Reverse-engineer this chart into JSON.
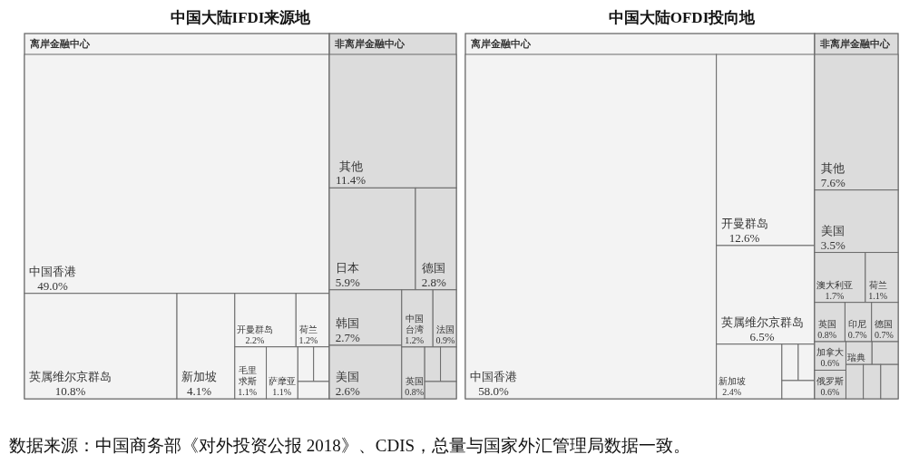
{
  "chart_data": [
    {
      "type": "other",
      "title": "中国大陆IFDI来源地",
      "categories": [
        "中国香港",
        "英属维尔京群岛",
        "新加坡",
        "开曼群岛",
        "荷兰",
        "毛里求斯",
        "萨摩亚",
        null,
        null,
        null,
        "其他",
        "日本",
        "德国",
        "韩国",
        "美国",
        "中国台湾",
        "法国",
        "英国",
        null,
        null,
        null
      ],
      "series": [
        {
          "name": "离岸金融中心",
          "color": "#f3f3f3",
          "values": [
            49.0,
            10.8,
            4.1,
            2.2,
            1.2,
            1.1,
            1.1,
            null,
            null,
            null,
            null,
            null,
            null,
            null,
            null,
            null,
            null,
            null,
            null,
            null,
            null
          ],
          "value_labels": [
            "49.0%",
            "10.8%",
            "4.1%",
            "2.2%",
            "1.2%",
            "1.1%",
            "1.1%",
            null,
            null,
            null,
            null,
            null,
            null,
            null,
            null,
            null,
            null,
            null,
            null,
            null,
            null
          ]
        },
        {
          "name": "非离岸金融中心",
          "color": "#dcdcdc",
          "values": [
            null,
            null,
            null,
            null,
            null,
            null,
            null,
            null,
            null,
            null,
            11.4,
            5.9,
            2.8,
            2.7,
            2.6,
            1.2,
            0.9,
            0.8,
            null,
            null,
            null
          ],
          "value_labels": [
            null,
            null,
            null,
            null,
            null,
            null,
            null,
            null,
            null,
            null,
            "11.4%",
            "5.9%",
            "2.8%",
            "2.7%",
            "2.6%",
            "1.2%",
            "0.9%",
            "0.8%",
            null,
            null,
            null
          ]
        }
      ]
    },
    {
      "type": "other",
      "title": "中国大陆OFDI投向地",
      "categories": [
        "中国香港",
        "开曼群岛",
        "英属维尔京群岛",
        "新加坡",
        null,
        null,
        null,
        "其他",
        "美国",
        "澳大利亚",
        "荷兰",
        "英国",
        "印尼",
        "德国",
        "加拿大",
        "俄罗斯",
        "瑞典",
        null,
        null,
        null,
        null
      ],
      "series": [
        {
          "name": "离岸金融中心",
          "color": "#f3f3f3",
          "values": [
            58.0,
            12.6,
            6.5,
            2.4,
            null,
            null,
            null,
            null,
            null,
            null,
            null,
            null,
            null,
            null,
            null,
            null,
            null,
            null,
            null,
            null,
            null
          ],
          "value_labels": [
            "58.0%",
            "12.6%",
            "6.5%",
            "2.4%",
            null,
            null,
            null,
            null,
            null,
            null,
            null,
            null,
            null,
            null,
            null,
            null,
            null,
            null,
            null,
            null,
            null
          ]
        },
        {
          "name": "非离岸金融中心",
          "color": "#dcdcdc",
          "values": [
            null,
            null,
            null,
            null,
            null,
            null,
            null,
            7.6,
            3.5,
            1.7,
            1.1,
            0.8,
            0.7,
            0.7,
            0.6,
            0.6,
            null,
            null,
            null,
            null,
            null
          ],
          "value_labels": [
            null,
            null,
            null,
            null,
            null,
            null,
            null,
            "7.6%",
            "3.5%",
            "1.7%",
            "1.1%",
            "0.8%",
            "0.7%",
            "0.7%",
            "0.6%",
            "0.6%",
            null,
            null,
            null,
            null,
            null
          ]
        }
      ],
      "annotations": [
        "数据来源：中国商务部《对外投资公报 2018》、CDIS，总量与国家外汇管理局数据一致。"
      ]
    }
  ]
}
